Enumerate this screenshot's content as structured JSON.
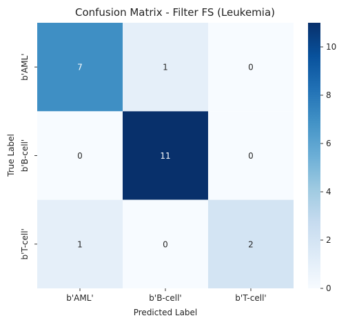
{
  "chart_data": {
    "type": "heatmap",
    "title": "Confusion Matrix - Filter FS (Leukemia)",
    "xlabel": "Predicted Label",
    "ylabel": "True Label",
    "x_categories": [
      "b'AML'",
      "b'B-cell'",
      "b'T-cell'"
    ],
    "y_categories": [
      "b'AML'",
      "b'B-cell'",
      "b'T-cell'"
    ],
    "values": [
      [
        7,
        1,
        0
      ],
      [
        0,
        11,
        0
      ],
      [
        1,
        0,
        2
      ]
    ],
    "colorbar": {
      "min": 0,
      "max": 11,
      "ticks": [
        0,
        2,
        4,
        6,
        8,
        10
      ],
      "colormap": "Blues"
    }
  }
}
